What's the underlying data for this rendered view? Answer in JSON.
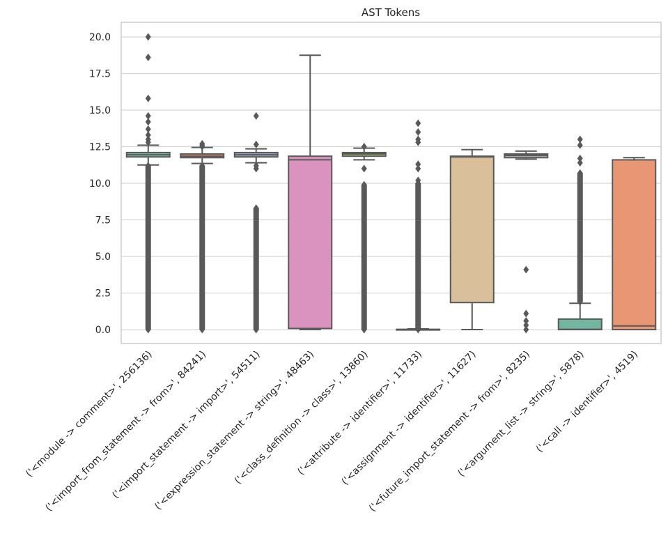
{
  "chart_data": {
    "type": "box",
    "title": "AST Tokens",
    "xlabel": "",
    "ylabel": "",
    "ylim": [
      -0.95,
      21.0
    ],
    "yticks": [
      0.0,
      2.5,
      5.0,
      7.5,
      10.0,
      12.5,
      15.0,
      17.5,
      20.0
    ],
    "ytick_labels": [
      "0.0",
      "2.5",
      "5.0",
      "7.5",
      "10.0",
      "12.5",
      "15.0",
      "17.5",
      "20.0"
    ],
    "grid": true,
    "legend": "none",
    "line_color": "#595959",
    "categories": [
      "('<module -> comment>', 256136)",
      "('<import_from_statement -> from>', 84241)",
      "('<import_statement -> import>', 54511)",
      "('<expression_statement -> string>', 48463)",
      "('<class_definition -> class>', 13860)",
      "('<attribute -> identifier>', 11733)",
      "('<assignment -> identifier>', 11627)",
      "('<future_import_statement -> from>', 8235)",
      "('<argument_list -> string>', 5878)",
      "('<call -> identifier>', 4519)"
    ],
    "boxes": [
      {
        "q1": 11.8,
        "median": 11.95,
        "q3": 12.1,
        "whisker_low": 11.25,
        "whisker_high": 12.6,
        "color": "#72b6a1",
        "outliers": [
          20.0,
          18.6,
          15.8,
          14.6,
          14.2,
          13.7,
          13.3,
          13.0,
          12.8
        ],
        "outlier_range": [
          0.0,
          11.2
        ]
      },
      {
        "q1": 11.75,
        "median": 11.85,
        "q3": 12.0,
        "whisker_low": 11.35,
        "whisker_high": 12.45,
        "color": "#e99675",
        "outliers": [
          12.7,
          12.6,
          12.5
        ],
        "outlier_range": [
          0.0,
          11.2
        ]
      },
      {
        "q1": 11.8,
        "median": 11.95,
        "q3": 12.1,
        "whisker_low": 11.4,
        "whisker_high": 12.35,
        "color": "#95a3c3",
        "outliers": [
          14.6,
          12.65,
          11.2,
          11.0
        ],
        "outlier_range": [
          0.0,
          8.3
        ]
      },
      {
        "q1": 0.08,
        "median": 11.6,
        "q3": 11.85,
        "whisker_low": 0.0,
        "whisker_high": 18.75,
        "color": "#da93bf",
        "outliers": [],
        "outlier_range": null
      },
      {
        "q1": 11.85,
        "median": 12.0,
        "q3": 12.1,
        "whisker_low": 11.6,
        "whisker_high": 12.4,
        "color": "#a6c867",
        "outliers": [
          12.5,
          11.0
        ],
        "outlier_range": [
          0.0,
          9.9
        ]
      },
      {
        "q1": 0.0,
        "median": 0.0,
        "q3": 0.02,
        "whisker_low": 0.0,
        "whisker_high": 0.05,
        "color": "#e7cf56",
        "outliers": [
          14.1,
          13.5,
          13.0,
          12.8,
          11.3,
          11.0,
          10.2
        ],
        "outlier_range": [
          0.0,
          10.0
        ]
      },
      {
        "q1": 1.85,
        "median": 11.8,
        "q3": 11.85,
        "whisker_low": 0.0,
        "whisker_high": 12.3,
        "color": "#d9c09a",
        "outliers": [],
        "outlier_range": null
      },
      {
        "q1": 11.75,
        "median": 11.9,
        "q3": 12.0,
        "whisker_low": 11.65,
        "whisker_high": 12.2,
        "color": "#b3b3b3",
        "outliers": [
          4.1,
          1.1,
          0.6,
          0.3,
          0.0
        ],
        "outlier_range": null
      },
      {
        "q1": 0.0,
        "median": 0.02,
        "q3": 0.72,
        "whisker_low": 0.0,
        "whisker_high": 1.8,
        "color": "#72b6a1",
        "outliers": [
          13.0,
          12.6,
          11.7,
          11.4
        ],
        "outlier_range": [
          1.9,
          10.7
        ]
      },
      {
        "q1": 0.0,
        "median": 0.25,
        "q3": 11.6,
        "whisker_low": 0.0,
        "whisker_high": 11.75,
        "color": "#e99675",
        "outliers": [],
        "outlier_range": null
      }
    ]
  }
}
